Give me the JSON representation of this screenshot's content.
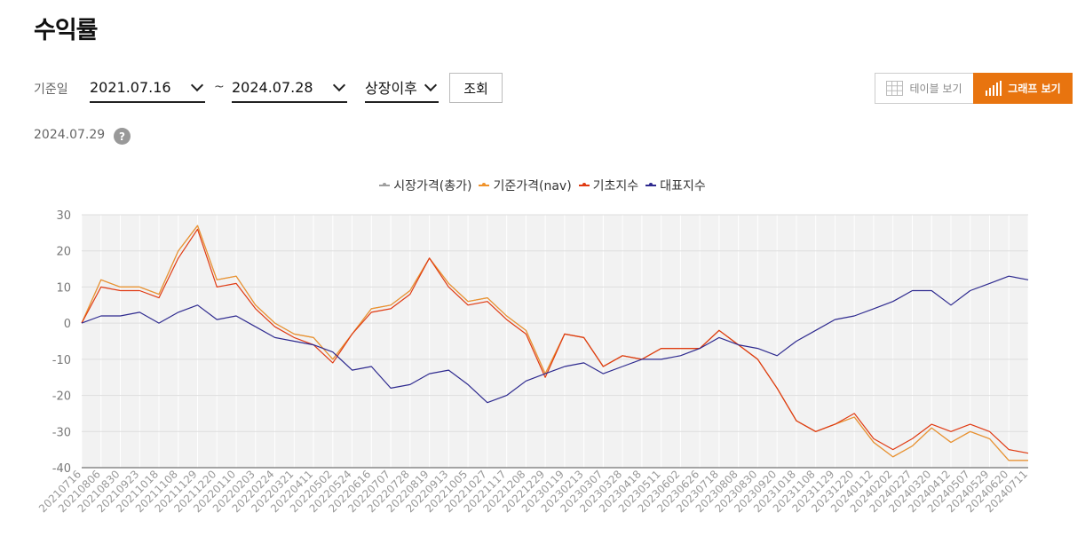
{
  "page": {
    "title": "수익률"
  },
  "filters": {
    "date_label": "기준일",
    "start_date": "2021.07.16",
    "separator": "~",
    "end_date": "2024.07.28",
    "period": "상장이후",
    "search_label": "조회"
  },
  "view_toggle": {
    "table_label": "테이블 보기",
    "graph_label": "그래프 보기",
    "active": "graph",
    "accent_color": "#e8740f"
  },
  "as_of": "2024.07.29",
  "help_symbol": "?",
  "colors": {
    "market_price": "#9e9e9e",
    "nav": "#f0932b",
    "base_index": "#e03a12",
    "benchmark": "#2e2a8f"
  },
  "chart_data": {
    "type": "line",
    "ylim": [
      -40,
      30
    ],
    "yticks": [
      30,
      20,
      10,
      0,
      -10,
      -20,
      -30,
      -40
    ],
    "grid": true,
    "legend": "top-center",
    "x": [
      "20210716",
      "20210806",
      "20210830",
      "20210923",
      "20211018",
      "20211108",
      "20211129",
      "20211220",
      "20220110",
      "20220203",
      "20220224",
      "20220321",
      "20220411",
      "20220502",
      "20220524",
      "20220616",
      "20220707",
      "20220728",
      "20220819",
      "20220913",
      "20221005",
      "20221027",
      "20221117",
      "20221208",
      "20221229",
      "20230119",
      "20230213",
      "20230307",
      "20230328",
      "20230418",
      "20230511",
      "20230602",
      "20230626",
      "20230718",
      "20230808",
      "20230830",
      "20230920",
      "20231018",
      "20231108",
      "20231129",
      "20231220",
      "20240112",
      "20240202",
      "20240227",
      "20240320",
      "20240412",
      "20240507",
      "20240529",
      "20240620",
      "20240711"
    ],
    "series": [
      {
        "name": "시장가격(총가)",
        "values": [
          0,
          12,
          10,
          10,
          8,
          20,
          27,
          12,
          13,
          5,
          0,
          -3,
          -4,
          -10,
          -3,
          4,
          5,
          9,
          18,
          11,
          6,
          7,
          2,
          -2,
          -14,
          -3,
          -4,
          -12,
          -9,
          -10,
          -7,
          -7,
          -7,
          -2,
          -6,
          -10,
          -18,
          -27,
          -30,
          -28,
          -26,
          -33,
          -37,
          -34,
          -29,
          -33,
          -30,
          -32,
          -38,
          -38
        ]
      },
      {
        "name": "기준가격(nav)",
        "values": [
          0,
          12,
          10,
          10,
          8,
          20,
          27,
          12,
          13,
          5,
          0,
          -3,
          -4,
          -10,
          -3,
          4,
          5,
          9,
          18,
          11,
          6,
          7,
          2,
          -2,
          -14,
          -3,
          -4,
          -12,
          -9,
          -10,
          -7,
          -7,
          -7,
          -2,
          -6,
          -10,
          -18,
          -27,
          -30,
          -28,
          -26,
          -33,
          -37,
          -34,
          -29,
          -33,
          -30,
          -32,
          -38,
          -38
        ]
      },
      {
        "name": "기초지수",
        "values": [
          0,
          10,
          9,
          9,
          7,
          18,
          26,
          10,
          11,
          4,
          -1,
          -4,
          -6,
          -11,
          -3,
          3,
          4,
          8,
          18,
          10,
          5,
          6,
          1,
          -3,
          -15,
          -3,
          -4,
          -12,
          -9,
          -10,
          -7,
          -7,
          -7,
          -2,
          -6,
          -10,
          -18,
          -27,
          -30,
          -28,
          -25,
          -32,
          -35,
          -32,
          -28,
          -30,
          -28,
          -30,
          -35,
          -36
        ]
      },
      {
        "name": "대표지수",
        "values": [
          0,
          2,
          2,
          3,
          0,
          3,
          5,
          1,
          2,
          -1,
          -4,
          -5,
          -6,
          -8,
          -13,
          -12,
          -18,
          -17,
          -14,
          -13,
          -17,
          -22,
          -20,
          -16,
          -14,
          -12,
          -11,
          -14,
          -12,
          -10,
          -10,
          -9,
          -7,
          -4,
          -6,
          -7,
          -9,
          -5,
          -2,
          1,
          2,
          4,
          6,
          9,
          9,
          5,
          9,
          11,
          13,
          12
        ]
      }
    ]
  }
}
